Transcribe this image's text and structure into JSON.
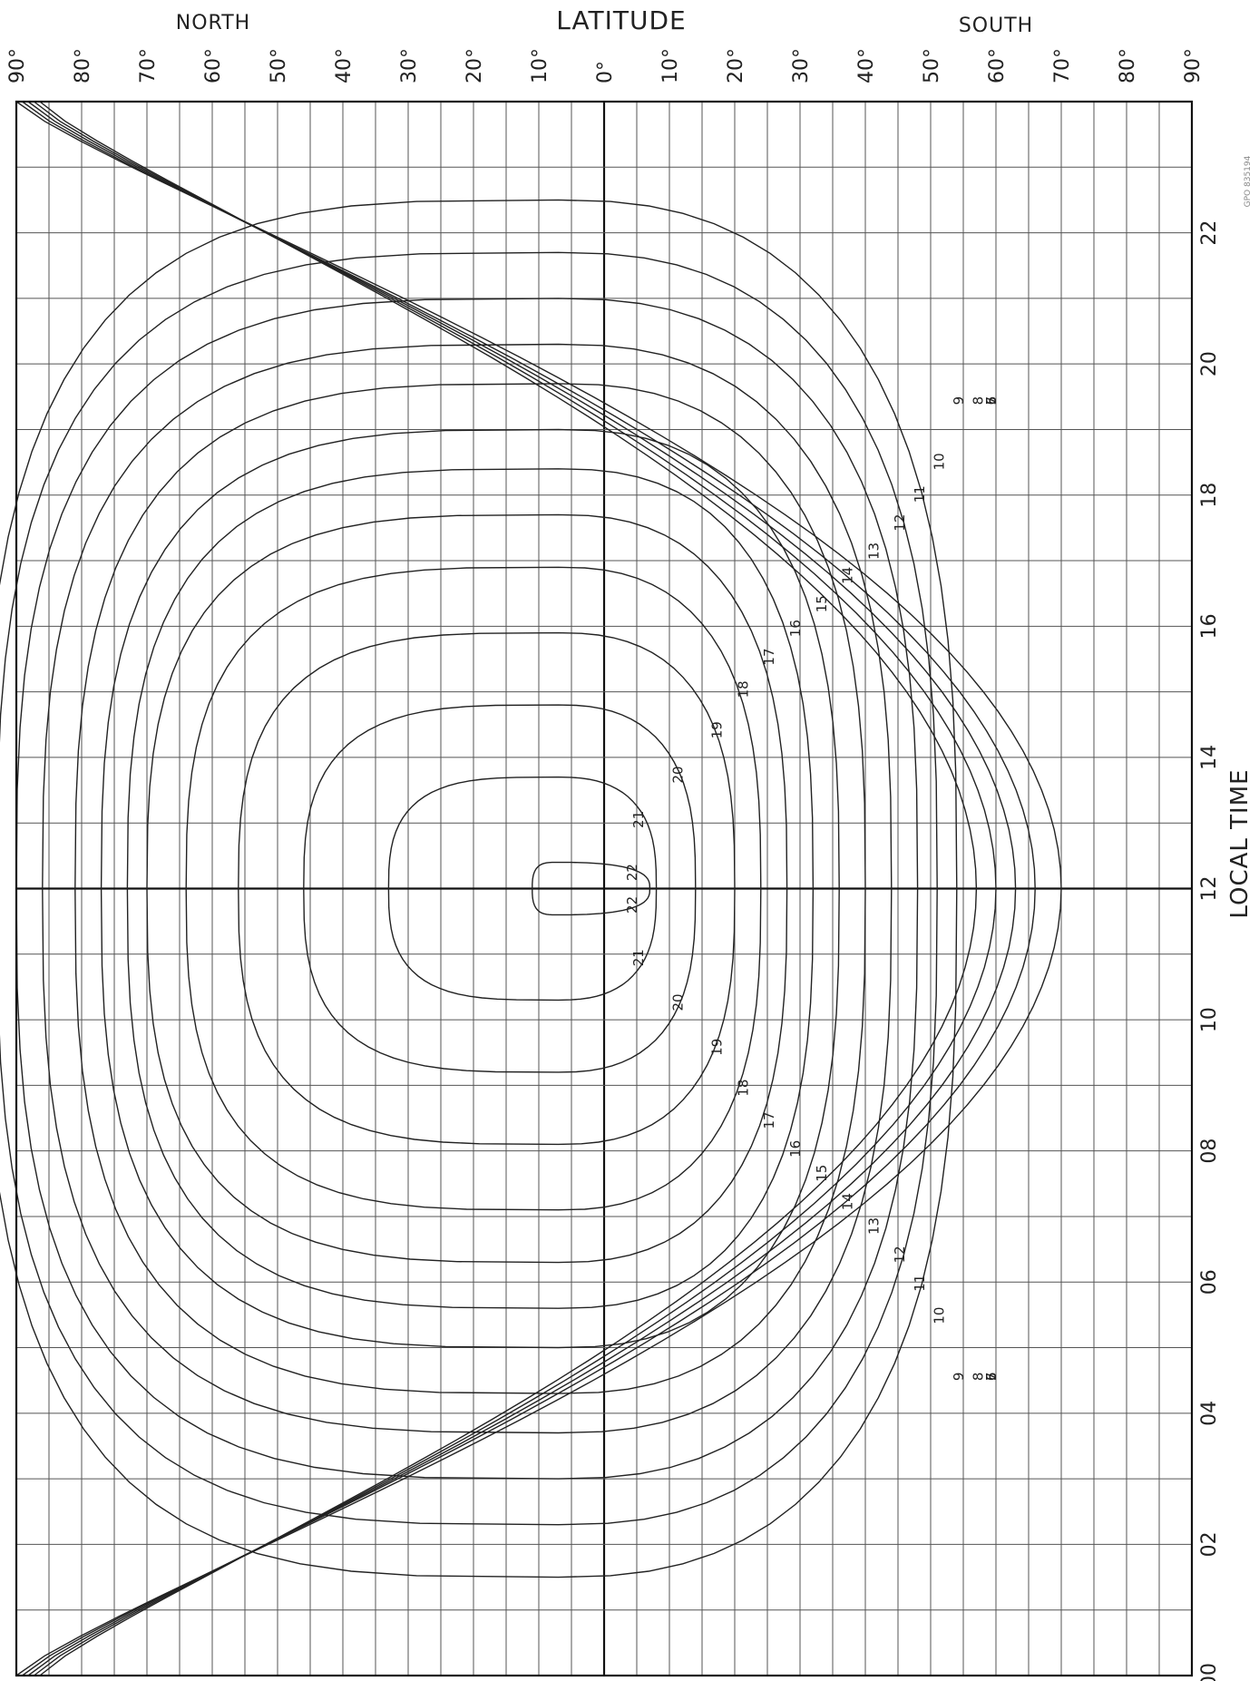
{
  "chart_data": {
    "type": "contour",
    "title": "LATITUDE",
    "north_label": "NORTH",
    "south_label": "SOUTH",
    "xlabel": "LATITUDE",
    "ylabel": "LOCAL TIME",
    "latitude_ticks": [
      "90°",
      "80°",
      "70°",
      "60°",
      "50°",
      "40°",
      "30°",
      "20°",
      "10°",
      "0°",
      "10°",
      "20°",
      "30°",
      "40°",
      "50°",
      "60°",
      "70°",
      "80°",
      "90°"
    ],
    "local_time_ticks": [
      "22",
      "20",
      "18",
      "16",
      "14",
      "12",
      "10",
      "08",
      "06",
      "04",
      "02",
      "00"
    ],
    "latitude_range": [
      90,
      -90
    ],
    "local_time_range": [
      24,
      0
    ],
    "grid": true,
    "stamp_text": "GPO 835194",
    "center": {
      "latitude": 7,
      "local_time": 12
    },
    "contours": [
      {
        "level": 22,
        "lat_extent": 4,
        "time_half_width": 0.4
      },
      {
        "level": 21,
        "lat_extent": 26,
        "time_half_width": 1.7
      },
      {
        "level": 20,
        "lat_extent": 39,
        "time_half_width": 2.8
      },
      {
        "level": 19,
        "lat_extent": 49,
        "time_half_width": 3.9
      },
      {
        "level": 18,
        "lat_extent": 57,
        "time_half_width": 4.9
      },
      {
        "level": 17,
        "lat_extent": 63,
        "time_half_width": 5.7
      },
      {
        "level": 16,
        "lat_extent": 66,
        "time_half_width": 6.4
      },
      {
        "level": 15,
        "lat_extent": 70,
        "time_half_width": 7.0
      },
      {
        "level": 14,
        "lat_extent": 74,
        "time_half_width": 7.7
      },
      {
        "level": 13,
        "lat_extent": 79,
        "time_half_width": 8.3
      },
      {
        "level": 12,
        "lat_extent": 83,
        "time_half_width": 9.0
      },
      {
        "level": 11,
        "lat_extent": 86,
        "time_half_width": 9.7
      },
      {
        "level": 10,
        "lat_extent": 88,
        "time_half_width": 10.5
      },
      {
        "level": 9,
        "lat_extent": 90,
        "time_half_width": 12
      },
      {
        "level": 8,
        "lat_extent": 90,
        "time_half_width": 12
      },
      {
        "level": 7,
        "lat_extent": 90,
        "time_half_width": 12
      },
      {
        "level": 6,
        "lat_extent": 90,
        "time_half_width": 12
      },
      {
        "level": 5,
        "lat_extent": 90,
        "time_half_width": 12
      }
    ],
    "south_extent": [
      {
        "level": 22,
        "lat": -7
      },
      {
        "level": 21,
        "lat": -8
      },
      {
        "level": 20,
        "lat": -14
      },
      {
        "level": 19,
        "lat": -20
      },
      {
        "level": 18,
        "lat": -24
      },
      {
        "level": 17,
        "lat": -28
      },
      {
        "level": 16,
        "lat": -32
      },
      {
        "level": 15,
        "lat": -36
      },
      {
        "level": 14,
        "lat": -40
      },
      {
        "level": 13,
        "lat": -44
      },
      {
        "level": 12,
        "lat": -48
      },
      {
        "level": 11,
        "lat": -51
      },
      {
        "level": 10,
        "lat": -54
      },
      {
        "level": 9,
        "lat": -57
      },
      {
        "level": 8,
        "lat": -60
      },
      {
        "level": 7,
        "lat": -63
      },
      {
        "level": 6,
        "lat": -66
      },
      {
        "level": 5,
        "lat": -70
      }
    ]
  }
}
